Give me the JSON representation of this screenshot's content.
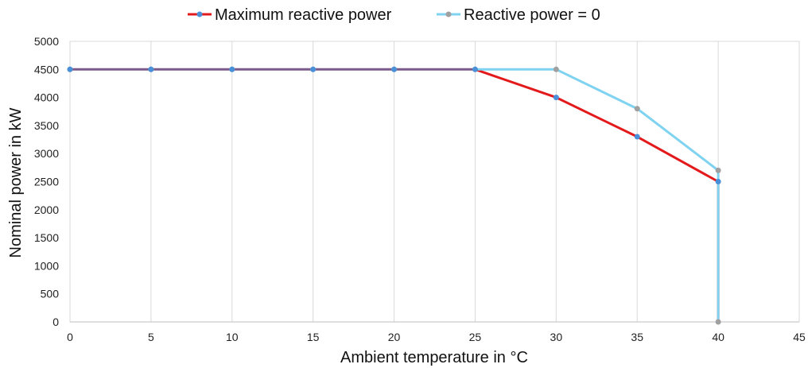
{
  "chart_data": {
    "type": "line",
    "xlabel": "Ambient temperature in °C",
    "ylabel": "Nominal power in kW",
    "xlim": [
      0,
      45
    ],
    "ylim": [
      0,
      5000
    ],
    "xticks": [
      "0",
      "5",
      "10",
      "15",
      "20",
      "25",
      "30",
      "35",
      "40",
      "45"
    ],
    "yticks": [
      "0",
      "500",
      "1000",
      "1500",
      "2000",
      "2500",
      "3000",
      "3500",
      "4000",
      "4500",
      "5000"
    ],
    "grid": "vertical",
    "legend_position": "top",
    "series": [
      {
        "name": "Maximum reactive power",
        "color": "#e31a1c",
        "marker_color": "#4a90d9",
        "points": [
          [
            0,
            4500
          ],
          [
            5,
            4500
          ],
          [
            10,
            4500
          ],
          [
            15,
            4500
          ],
          [
            20,
            4500
          ],
          [
            25,
            4500
          ],
          [
            30,
            4000
          ],
          [
            35,
            3300
          ],
          [
            40,
            2500
          ],
          [
            40,
            0
          ]
        ]
      },
      {
        "name": "Reactive power = 0",
        "color": "#7fd3f0",
        "marker_color": "#a0a0a0",
        "points": [
          [
            0,
            4500
          ],
          [
            5,
            4500
          ],
          [
            10,
            4500
          ],
          [
            15,
            4500
          ],
          [
            20,
            4500
          ],
          [
            25,
            4500
          ],
          [
            30,
            4500
          ],
          [
            35,
            3800
          ],
          [
            40,
            2700
          ],
          [
            40,
            0
          ]
        ]
      }
    ],
    "overlap_color": "#7a5a8a"
  }
}
